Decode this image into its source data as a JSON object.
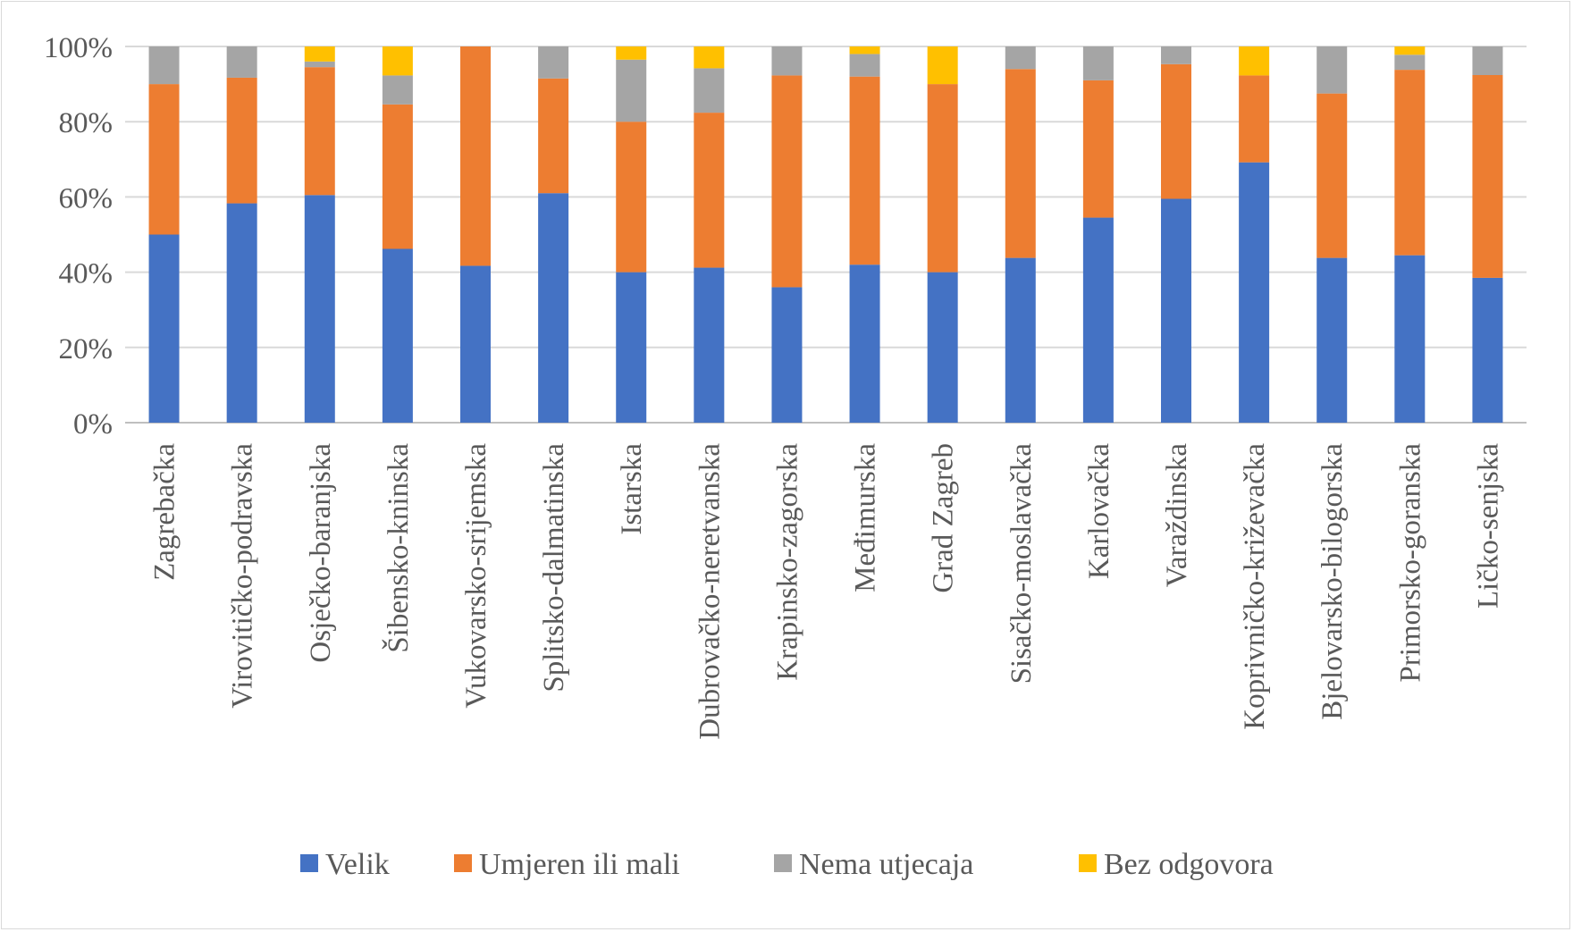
{
  "chart_data": {
    "type": "bar",
    "stacked": true,
    "normalized": true,
    "categories": [
      "Zagrebačka",
      "Virovitičko-podravska",
      "Osječko-baranjska",
      "Šibensko-kninska",
      "Vukovarsko-srijemska",
      "Splitsko-dalmatinska",
      "Istarska",
      "Dubrovačko-neretvanska",
      "Krapinsko-zagorska",
      "Međimurska",
      "Grad Zagreb",
      "Sisačko-moslavačka",
      "Karlovačka",
      "Varaždinska",
      "Koprivničko-križevačka",
      "Bjelovarsko-bilogorska",
      "Primorsko-goranska",
      "Ličko-senjska"
    ],
    "series": [
      {
        "name": "Velik",
        "color": "#4472C4",
        "values": [
          50,
          58.3,
          60.5,
          46.2,
          41.7,
          61,
          40,
          41.2,
          36,
          42,
          40,
          43.8,
          54.5,
          59.5,
          69.2,
          43.8,
          44.5,
          38.5
        ]
      },
      {
        "name": "Umjeren ili mali",
        "color": "#ED7D31",
        "values": [
          40,
          33.4,
          34,
          38.4,
          58.3,
          30.5,
          40,
          41.2,
          56.3,
          50,
          50,
          50.2,
          36.5,
          35.8,
          23.1,
          43.7,
          49.3,
          53.9
        ]
      },
      {
        "name": "Nema utjecaja",
        "color": "#A5A5A5",
        "values": [
          10,
          8.3,
          1.5,
          7.7,
          0,
          8.5,
          16.5,
          11.8,
          7.7,
          6,
          0,
          6,
          9,
          4.7,
          0,
          12.5,
          4,
          7.6
        ]
      },
      {
        "name": "Bez odgovora",
        "color": "#FFC000",
        "values": [
          0,
          0,
          4,
          7.7,
          0,
          0,
          3.5,
          5.8,
          0,
          2,
          10,
          0,
          0,
          0,
          7.7,
          0,
          2.2,
          0
        ]
      }
    ],
    "y_ticks": [
      "0%",
      "20%",
      "40%",
      "60%",
      "80%",
      "100%"
    ],
    "ylim": [
      0,
      100
    ],
    "grid": true,
    "legend": "bottom"
  }
}
